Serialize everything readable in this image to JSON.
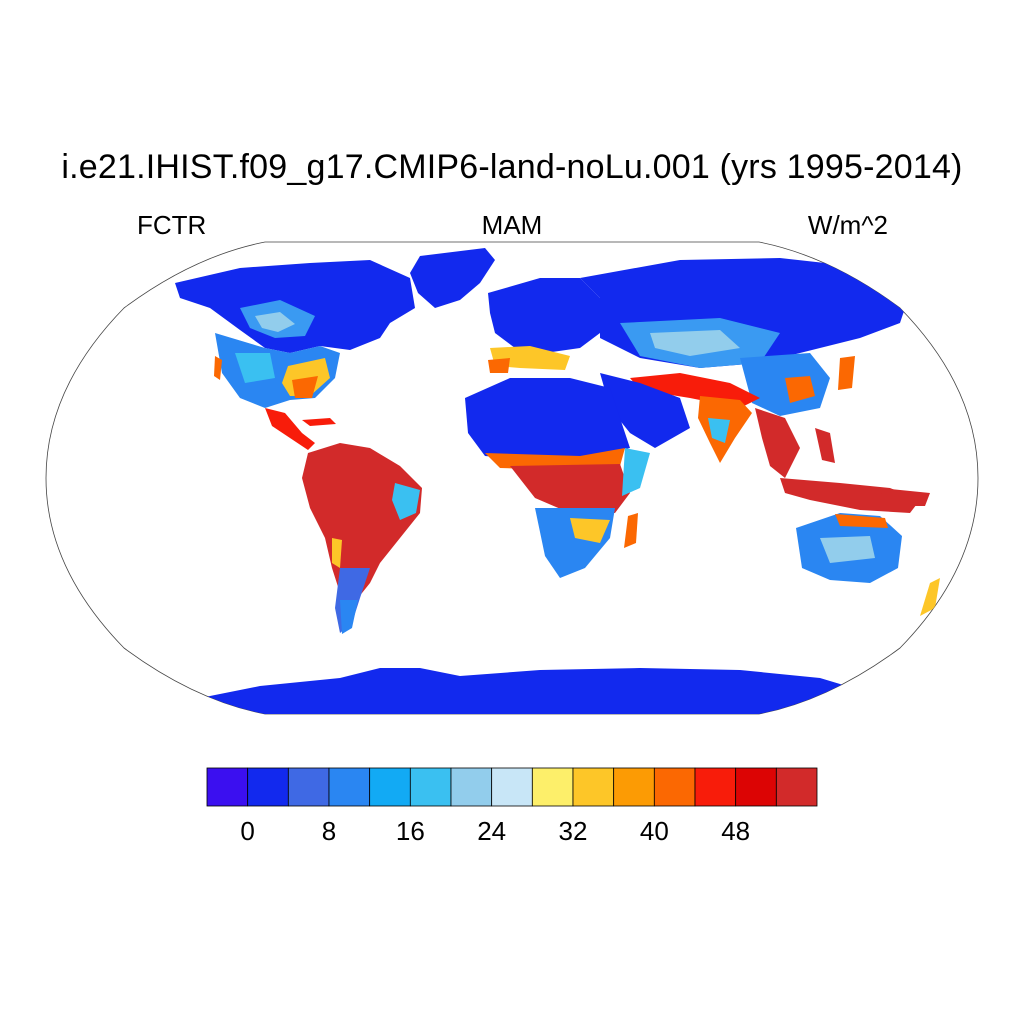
{
  "header": {
    "title": "i.e21.IHIST.f09_g17.CMIP6-land-noLu.001 (yrs 1995-2014)",
    "variable": "FCTR",
    "season": "MAM",
    "units": "W/m^2"
  },
  "map": {
    "projection": "robinson",
    "fill_regions": [
      {
        "region": "sahara-arabia",
        "level": 0
      },
      {
        "region": "greenland",
        "level": 0
      },
      {
        "region": "antarctica",
        "level": 0
      },
      {
        "region": "siberia",
        "level": 4
      },
      {
        "region": "canada",
        "level": 3
      },
      {
        "region": "usa",
        "level": 6
      },
      {
        "region": "amazon",
        "level": 52
      },
      {
        "region": "central-africa",
        "level": 50
      },
      {
        "region": "southeast-asia",
        "level": 50
      },
      {
        "region": "australia-interior",
        "level": 16
      }
    ]
  },
  "colorbar": {
    "colors": [
      "#3b0ff0",
      "#1229ee",
      "#3f69e4",
      "#2a86f2",
      "#12aaf4",
      "#3ac0f1",
      "#92cdec",
      "#c8e6f7",
      "#fdef6a",
      "#fdc628",
      "#fc9b04",
      "#fb6802",
      "#f81c0a",
      "#dc0404",
      "#d22a2a"
    ],
    "tick_labels": [
      "0",
      "8",
      "16",
      "24",
      "32",
      "40",
      "48"
    ]
  }
}
